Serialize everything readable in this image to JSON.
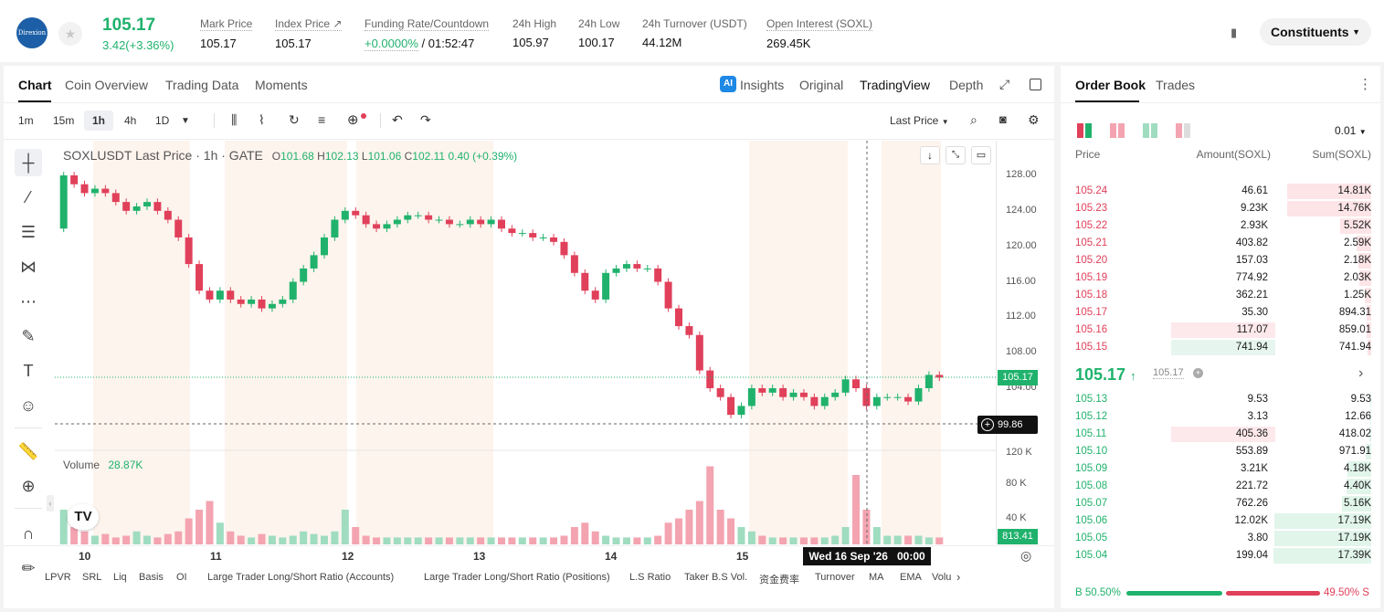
{
  "header": {
    "logo_text": "Direxion",
    "last_price": "105.17",
    "change": "3.42(+3.36%)",
    "stats": [
      {
        "label": "Mark Price",
        "value": "105.17"
      },
      {
        "label": "Index Price ↗",
        "value": "105.17"
      },
      {
        "label": "Funding Rate/Countdown",
        "value_green": "+0.0000%",
        "value": " / 01:52:47"
      },
      {
        "label": "24h High",
        "value": "105.97"
      },
      {
        "label": "24h Low",
        "value": "100.17"
      },
      {
        "label": "24h Turnover (USDT)",
        "value": "44.12M"
      },
      {
        "label": "Open Interest (SOXL)",
        "value": "269.45K"
      }
    ],
    "constituents_label": "Constituents"
  },
  "chart_tabs": [
    "Chart",
    "Coin Overview",
    "Trading Data",
    "Moments"
  ],
  "chart_views": {
    "insights": "Insights",
    "original": "Original",
    "tradingview": "TradingView",
    "depth": "Depth"
  },
  "timeframes": [
    "1m",
    "15m",
    "1h",
    "4h",
    "1D"
  ],
  "active_timeframe": "1h",
  "last_price_selector": "Last Price",
  "legend": {
    "symbol": "SOXLUSDT Last Price · 1h · GATE",
    "o_label": "O",
    "o": "101.68",
    "h_label": "H",
    "h": "102.13",
    "l_label": "L",
    "l": "101.06",
    "c_label": "C",
    "c": "102.11",
    "chg": "0.40 (+0.39%)"
  },
  "volume_legend": {
    "label": "Volume",
    "value": "28.87K"
  },
  "crosshair": {
    "price": "99.86",
    "time": "Wed 16 Sep '26   00:00"
  },
  "current_price_label": "105.17",
  "current_volume_label": "813.41",
  "price_ticks": [
    "128.00",
    "124.00",
    "120.00",
    "116.00",
    "112.00",
    "108.00",
    "104.00"
  ],
  "volume_ticks": [
    "120 K",
    "80 K",
    "40 K"
  ],
  "date_ticks": [
    "10",
    "11",
    "12",
    "13",
    "14",
    "15"
  ],
  "indicators": [
    "LPVR",
    "SRL",
    "Liq",
    "Basis",
    "OI",
    "Large Trader Long/Short Ratio (Accounts)",
    "Large Trader Long/Short Ratio (Positions)",
    "L.S Ratio",
    "Taker B.S Vol.",
    "资金费率",
    "Turnover",
    "MA",
    "EMA",
    "Volu"
  ],
  "orderbook": {
    "tabs": [
      "Order Book",
      "Trades"
    ],
    "precision": "0.01",
    "cols": [
      "Price",
      "Amount(SOXL)",
      "Sum(SOXL)"
    ],
    "asks": [
      {
        "price": "105.24",
        "amount": "46.61",
        "sum": "14.81K",
        "depth": 0.86
      },
      {
        "price": "105.23",
        "amount": "9.23K",
        "sum": "14.76K",
        "depth": 0.86
      },
      {
        "price": "105.22",
        "amount": "2.93K",
        "sum": "5.52K",
        "depth": 0.32
      },
      {
        "price": "105.21",
        "amount": "403.82",
        "sum": "2.59K",
        "depth": 0.15
      },
      {
        "price": "105.20",
        "amount": "157.03",
        "sum": "2.18K",
        "depth": 0.13
      },
      {
        "price": "105.19",
        "amount": "774.92",
        "sum": "2.03K",
        "depth": 0.12
      },
      {
        "price": "105.18",
        "amount": "362.21",
        "sum": "1.25K",
        "depth": 0.07
      },
      {
        "price": "105.17",
        "amount": "35.30",
        "sum": "894.31",
        "depth": 0.05
      },
      {
        "price": "105.16",
        "amount": "117.07",
        "sum": "859.01",
        "depth": 0.05,
        "hl": true
      },
      {
        "price": "105.15",
        "amount": "741.94",
        "sum": "741.94",
        "depth": 0.04,
        "hlg": true
      }
    ],
    "mid_price": "105.17",
    "mid_arrow": "↑",
    "mid_mark": "105.17",
    "bids": [
      {
        "price": "105.13",
        "amount": "9.53",
        "sum": "9.53",
        "depth": 0.01
      },
      {
        "price": "105.12",
        "amount": "3.13",
        "sum": "12.66",
        "depth": 0.01
      },
      {
        "price": "105.11",
        "amount": "405.36",
        "sum": "418.02",
        "depth": 0.02,
        "hl": true
      },
      {
        "price": "105.10",
        "amount": "553.89",
        "sum": "971.91",
        "depth": 0.06
      },
      {
        "price": "105.09",
        "amount": "3.21K",
        "sum": "4.18K",
        "depth": 0.24
      },
      {
        "price": "105.08",
        "amount": "221.72",
        "sum": "4.40K",
        "depth": 0.25
      },
      {
        "price": "105.07",
        "amount": "762.26",
        "sum": "5.16K",
        "depth": 0.3
      },
      {
        "price": "105.06",
        "amount": "12.02K",
        "sum": "17.19K",
        "depth": 0.99
      },
      {
        "price": "105.05",
        "amount": "3.80",
        "sum": "17.19K",
        "depth": 0.99
      },
      {
        "price": "105.04",
        "amount": "199.04",
        "sum": "17.39K",
        "depth": 1.0
      }
    ],
    "buy_ratio": "B 50.50%",
    "sell_ratio": "49.50% S",
    "buy_fraction": 0.505
  },
  "colors": {
    "up": "#20b26c",
    "down": "#e0405a"
  },
  "chart_data": {
    "type": "candlestick",
    "symbol": "SOXLUSDT",
    "interval": "1h",
    "ylim": [
      100,
      130
    ],
    "close_series_approx": [
      128,
      127,
      126,
      126.5,
      126,
      125,
      124,
      124.5,
      125,
      124,
      123,
      121,
      118,
      115,
      114,
      115,
      114,
      113.5,
      114,
      113,
      113.5,
      114,
      116,
      117.5,
      119,
      121,
      123,
      124,
      123.5,
      122.5,
      122,
      122.5,
      123,
      123.5,
      123.5,
      123,
      123,
      122.5,
      122.5,
      123,
      122.5,
      123,
      122,
      121.5,
      121.5,
      121,
      121,
      120.5,
      119,
      117,
      115,
      114,
      117,
      117.5,
      118,
      117.5,
      117.5,
      116,
      113,
      111,
      110,
      106,
      104,
      103,
      101,
      102,
      104,
      103.5,
      104,
      103,
      103.5,
      103,
      102,
      103,
      103.5,
      105,
      104,
      102,
      103,
      103,
      103,
      102.5,
      104,
      105.5,
      105.2
    ],
    "volume_approx_k": [
      40,
      20,
      15,
      10,
      12,
      8,
      10,
      15,
      10,
      8,
      12,
      15,
      30,
      40,
      50,
      25,
      15,
      10,
      8,
      12,
      10,
      8,
      10,
      15,
      12,
      10,
      15,
      40,
      20,
      10,
      8,
      8,
      8,
      8,
      8,
      8,
      8,
      8,
      8,
      8,
      8,
      8,
      8,
      8,
      8,
      8,
      8,
      8,
      10,
      20,
      25,
      15,
      10,
      8,
      8,
      8,
      8,
      10,
      25,
      30,
      40,
      50,
      90,
      40,
      30,
      20,
      15,
      10,
      8,
      8,
      8,
      8,
      8,
      8,
      10,
      20,
      80,
      40,
      20,
      10,
      10,
      10,
      10,
      8,
      8
    ]
  }
}
